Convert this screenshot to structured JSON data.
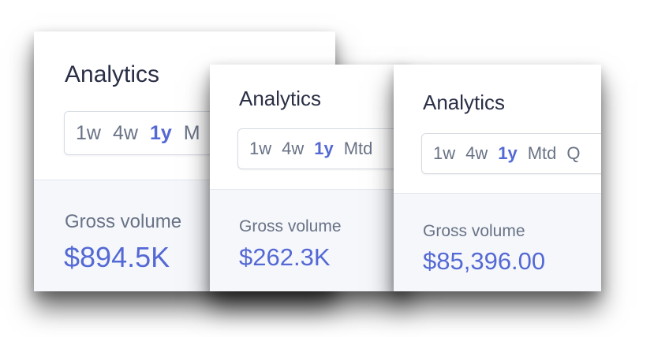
{
  "cards": [
    {
      "title": "Analytics",
      "ranges": [
        "1w",
        "4w",
        "1y",
        "M"
      ],
      "active_range": "1y",
      "metric_label": "Gross volume",
      "metric_value": "$894.5K"
    },
    {
      "title": "Analytics",
      "ranges": [
        "1w",
        "4w",
        "1y",
        "Mtd"
      ],
      "active_range": "1y",
      "metric_label": "Gross volume",
      "metric_value": "$262.3K"
    },
    {
      "title": "Analytics",
      "ranges": [
        "1w",
        "4w",
        "1y",
        "Mtd",
        "Q"
      ],
      "active_range": "1y",
      "metric_label": "Gross volume",
      "metric_value": "$85,396.00"
    }
  ],
  "colors": {
    "accent": "#5469d4",
    "muted_text": "#697386",
    "title_text": "#2a2f45",
    "lower_panel": "#f5f7fb"
  }
}
